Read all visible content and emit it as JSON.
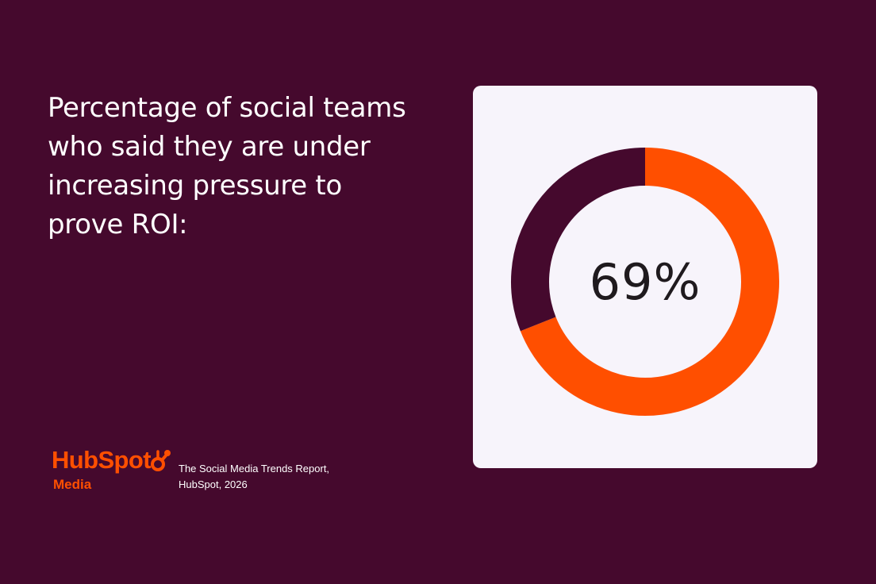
{
  "headline": "Percentage of social teams who said they are under increasing pressure to prove ROI:",
  "logo": {
    "wordmark": "HubSpot",
    "sub": "Media",
    "icon": "sprocket-icon"
  },
  "source": {
    "line1": "The Social Media Trends Report,",
    "line2": "HubSpot, 2026"
  },
  "colors": {
    "background": "#45092D",
    "card": "#F7F4FB",
    "accent": "#FF4F00",
    "remainder": "#45092D",
    "headline_text": "#FFFFFF",
    "center_text": "#1F1A1E"
  },
  "chart_data": {
    "type": "pie",
    "style": "donut",
    "center_label": "69%",
    "slices": [
      {
        "value": 69,
        "color": "#FF4F00"
      },
      {
        "value": 31,
        "color": "#45092D"
      }
    ]
  }
}
